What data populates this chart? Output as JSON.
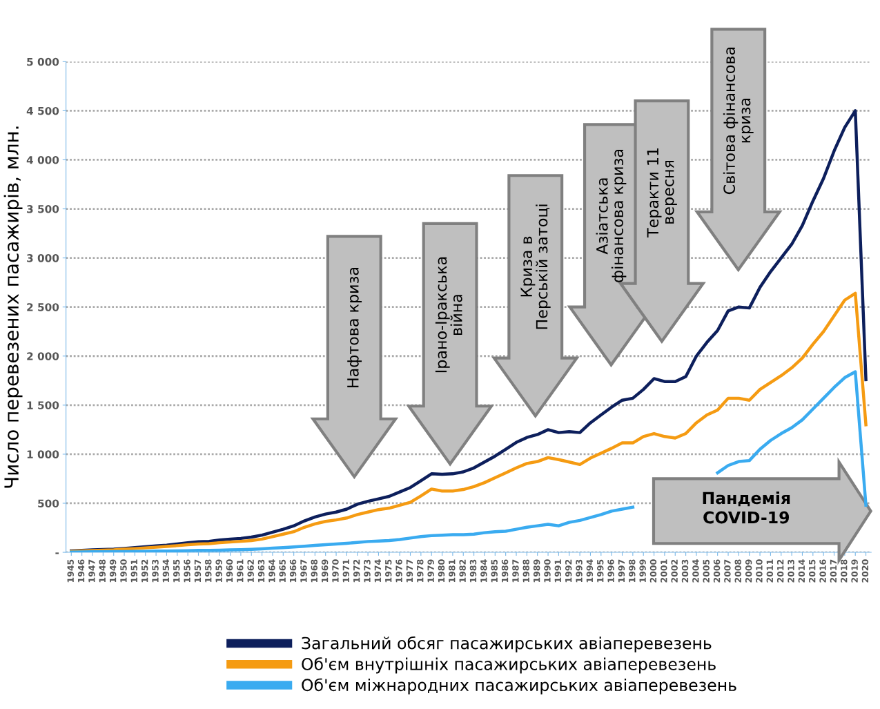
{
  "chart_data": {
    "type": "line",
    "ylabel": "Число перевезених пасажирів, млн.",
    "categories": [
      "1945",
      "1946",
      "1947",
      "1948",
      "1949",
      "1950",
      "1951",
      "1952",
      "1953",
      "1954",
      "1955",
      "1956",
      "1957",
      "1958",
      "1959",
      "1960",
      "1961",
      "1962",
      "1963",
      "1964",
      "1965",
      "1966",
      "1967",
      "1968",
      "1969",
      "1970",
      "1971",
      "1972",
      "1973",
      "1974",
      "1975",
      "1976",
      "1977",
      "1978",
      "1979",
      "1980",
      "1981",
      "1982",
      "1983",
      "1984",
      "1985",
      "1986",
      "1987",
      "1988",
      "1989",
      "1990",
      "1991",
      "1992",
      "1993",
      "1994",
      "1995",
      "1996",
      "1997",
      "1998",
      "1999",
      "2000",
      "2001",
      "2002",
      "2003",
      "2004",
      "2005",
      "2006",
      "2007",
      "2008",
      "2009",
      "2010",
      "2011",
      "2012",
      "2013",
      "2014",
      "2015",
      "2016",
      "2017",
      "2018",
      "2019",
      "2020"
    ],
    "series": [
      {
        "name": "Загальний обсяг пасажирських авіаперевезень",
        "color": "#0d1f5c",
        "values": [
          15,
          20,
          25,
          28,
          32,
          40,
          48,
          56,
          65,
          73,
          85,
          97,
          108,
          112,
          125,
          135,
          142,
          155,
          175,
          205,
          235,
          270,
          320,
          360,
          390,
          410,
          440,
          490,
          520,
          545,
          570,
          615,
          660,
          730,
          800,
          795,
          800,
          820,
          860,
          920,
          980,
          1050,
          1120,
          1170,
          1200,
          1250,
          1220,
          1230,
          1220,
          1320,
          1400,
          1480,
          1550,
          1570,
          1660,
          1770,
          1740,
          1740,
          1790,
          2000,
          2140,
          2260,
          2460,
          2500,
          2490,
          2700,
          2860,
          3000,
          3140,
          3330,
          3580,
          3810,
          4090,
          4330,
          4500,
          1760
        ]
      },
      {
        "name": "Об'єм внутрішніх пасажирських авіаперевезень",
        "color": "#f59b12",
        "values": [
          10,
          15,
          18,
          22,
          25,
          32,
          38,
          45,
          52,
          60,
          68,
          78,
          85,
          88,
          98,
          105,
          112,
          120,
          135,
          160,
          185,
          210,
          255,
          290,
          315,
          330,
          350,
          385,
          410,
          435,
          450,
          480,
          510,
          575,
          645,
          625,
          625,
          640,
          670,
          710,
          760,
          810,
          860,
          905,
          925,
          965,
          945,
          920,
          895,
          960,
          1010,
          1060,
          1115,
          1115,
          1180,
          1210,
          1180,
          1165,
          1210,
          1320,
          1400,
          1450,
          1570,
          1570,
          1550,
          1660,
          1730,
          1800,
          1880,
          1980,
          2120,
          2250,
          2410,
          2570,
          2640,
          1300
        ]
      },
      {
        "name": "Об'єм міжнародних пасажирських авіаперевезень",
        "color": "#3aabf0",
        "values": [
          3,
          4,
          5,
          6,
          7,
          8,
          9,
          10,
          12,
          13,
          15,
          17,
          19,
          20,
          22,
          25,
          27,
          30,
          35,
          42,
          48,
          55,
          62,
          70,
          78,
          85,
          92,
          100,
          110,
          115,
          120,
          130,
          145,
          160,
          170,
          175,
          180,
          180,
          185,
          200,
          210,
          215,
          235,
          255,
          270,
          285,
          270,
          305,
          325,
          355,
          385,
          420,
          440,
          460,
          null,
          null,
          null,
          null,
          null,
          null,
          null,
          810,
          885,
          925,
          935,
          1050,
          1140,
          1210,
          1270,
          1350,
          1460,
          1570,
          1680,
          1780,
          1840,
          480
        ]
      }
    ],
    "ylim": [
      0,
      5000
    ],
    "yticks": [
      {
        "value": 0,
        "label": "-"
      },
      {
        "value": 500,
        "label": "500"
      },
      {
        "value": 1000,
        "label": "1 000"
      },
      {
        "value": 1500,
        "label": "1 500"
      },
      {
        "value": 2000,
        "label": "2 000"
      },
      {
        "value": 2500,
        "label": "2 500"
      },
      {
        "value": 3000,
        "label": "3 000"
      },
      {
        "value": 3500,
        "label": "3 500"
      },
      {
        "value": 4000,
        "label": "4 000"
      },
      {
        "value": 4500,
        "label": "4 500"
      },
      {
        "value": 5000,
        "label": "5 000"
      }
    ],
    "grid": "y",
    "legend": "bottom",
    "annotations": [
      "Нафтова криза",
      "Ірано-Іракська\nвійна",
      "Криза в\nПерській затоці",
      "Азіатська\nфінансова криза",
      "Теракти 11\nвересня",
      "Світова фінансова\nкриза",
      "Пандемія\nCOVID-19"
    ]
  }
}
